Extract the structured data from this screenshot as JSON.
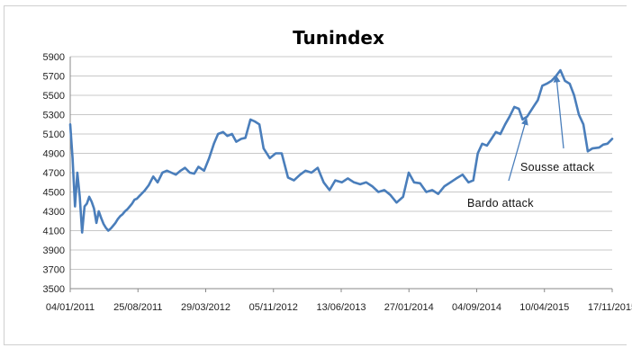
{
  "chart_data": {
    "type": "line",
    "title": "Tunindex",
    "xlabel": "",
    "ylabel": "",
    "ylim": [
      3500,
      5900
    ],
    "yticks": [
      3500,
      3700,
      3900,
      4100,
      4300,
      4500,
      4700,
      4900,
      5100,
      5300,
      5500,
      5700,
      5900
    ],
    "xtick_labels": [
      "04/01/2011",
      "25/08/2011",
      "29/03/2012",
      "05/11/2012",
      "13/06/2013",
      "27/01/2014",
      "04/09/2014",
      "10/04/2015",
      "17/11/2015"
    ],
    "grid": true,
    "legend": "none",
    "line_color": "#4A7EBB",
    "series": [
      {
        "x": [
          "2011-01-04",
          "2011-01-12",
          "2011-01-20",
          "2011-01-28",
          "2011-02-05",
          "2011-02-13",
          "2011-02-21",
          "2011-03-01",
          "2011-03-09",
          "2011-03-17",
          "2011-03-25",
          "2011-04-02",
          "2011-04-10",
          "2011-04-18",
          "2011-04-26",
          "2011-05-04",
          "2011-05-12",
          "2011-05-20",
          "2011-05-28",
          "2011-06-05",
          "2011-06-13",
          "2011-06-21",
          "2011-06-29",
          "2011-07-07",
          "2011-07-15",
          "2011-07-23",
          "2011-07-31",
          "2011-08-08",
          "2011-08-16",
          "2011-08-25",
          "2011-09-10",
          "2011-09-25",
          "2011-10-10",
          "2011-10-25",
          "2011-11-10",
          "2011-11-25",
          "2011-12-10",
          "2011-12-25",
          "2012-01-10",
          "2012-01-25",
          "2012-02-10",
          "2012-02-25",
          "2012-03-10",
          "2012-03-29",
          "2012-04-15",
          "2012-05-01",
          "2012-05-15",
          "2012-06-01",
          "2012-06-15",
          "2012-07-01",
          "2012-07-15",
          "2012-08-01",
          "2012-08-15",
          "2012-09-01",
          "2012-09-15",
          "2012-10-01",
          "2012-10-15",
          "2012-11-05",
          "2012-11-25",
          "2012-12-15",
          "2013-01-05",
          "2013-01-25",
          "2013-02-15",
          "2013-03-05",
          "2013-03-25",
          "2013-04-15",
          "2013-05-05",
          "2013-05-25",
          "2013-06-13",
          "2013-07-05",
          "2013-07-25",
          "2013-08-15",
          "2013-09-05",
          "2013-09-25",
          "2013-10-15",
          "2013-11-05",
          "2013-11-25",
          "2013-12-15",
          "2014-01-05",
          "2014-01-27",
          "2014-02-15",
          "2014-03-05",
          "2014-03-25",
          "2014-04-15",
          "2014-05-05",
          "2014-05-25",
          "2014-06-15",
          "2014-07-05",
          "2014-07-25",
          "2014-08-15",
          "2014-09-04",
          "2014-09-20",
          "2014-10-05",
          "2014-10-20",
          "2014-11-05",
          "2014-11-20",
          "2014-12-05",
          "2014-12-20",
          "2015-01-05",
          "2015-01-20",
          "2015-02-05",
          "2015-02-20",
          "2015-03-05",
          "2015-03-20",
          "2015-04-10",
          "2015-04-25",
          "2015-05-10",
          "2015-05-25",
          "2015-06-10",
          "2015-06-25",
          "2015-07-10",
          "2015-07-25",
          "2015-08-10",
          "2015-08-25",
          "2015-09-10",
          "2015-09-25",
          "2015-10-10",
          "2015-10-25",
          "2015-11-17",
          "2015-12-01",
          "2015-12-15",
          "2015-12-31"
        ],
        "values": [
          5200,
          4850,
          4350,
          4700,
          4450,
          4080,
          4350,
          4380,
          4450,
          4400,
          4330,
          4180,
          4300,
          4230,
          4170,
          4130,
          4100,
          4120,
          4150,
          4180,
          4220,
          4250,
          4270,
          4300,
          4320,
          4350,
          4380,
          4420,
          4430,
          4460,
          4510,
          4570,
          4660,
          4600,
          4700,
          4720,
          4700,
          4680,
          4720,
          4750,
          4700,
          4690,
          4760,
          4720,
          4850,
          5000,
          5100,
          5120,
          5080,
          5100,
          5020,
          5050,
          5060,
          5250,
          5230,
          5200,
          4950,
          4850,
          4900,
          4900,
          4650,
          4620,
          4680,
          4720,
          4700,
          4750,
          4600,
          4520,
          4620,
          4600,
          4640,
          4600,
          4580,
          4600,
          4560,
          4500,
          4520,
          4470,
          4390,
          4450,
          4700,
          4600,
          4590,
          4500,
          4520,
          4480,
          4560,
          4600,
          4640,
          4680,
          4600,
          4620,
          4900,
          5000,
          4980,
          5050,
          5120,
          5100,
          5200,
          5280,
          5380,
          5360,
          5250,
          5280,
          5380,
          5450,
          5600,
          5620,
          5650,
          5700,
          5760,
          5650,
          5620,
          5500,
          5300,
          5200,
          4920,
          4950,
          4960,
          4990,
          5000,
          5050
        ]
      }
    ],
    "annotations": [
      {
        "text": "Bardo attack",
        "x": "2015-03-18",
        "y": 5260
      },
      {
        "text": "Sousse attack",
        "x": "2015-06-26",
        "y": 5700
      }
    ]
  }
}
